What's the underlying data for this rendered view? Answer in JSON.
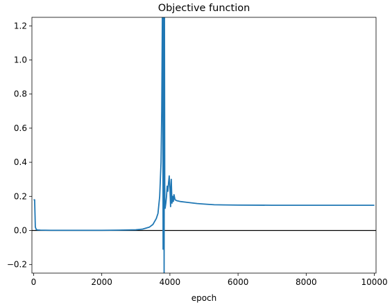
{
  "chart_data": {
    "type": "line",
    "title": "Objective function",
    "xlabel": "epoch",
    "ylabel": "",
    "xlim": [
      -50,
      10050
    ],
    "ylim": [
      -0.25,
      1.25
    ],
    "xticks": [
      0,
      2000,
      4000,
      6000,
      8000,
      10000
    ],
    "xtick_labels": [
      "0",
      "2000",
      "4000",
      "6000",
      "8000",
      "10000"
    ],
    "yticks": [
      -0.2,
      0.0,
      0.2,
      0.4,
      0.6,
      0.8,
      1.0,
      1.2
    ],
    "ytick_labels": [
      "−0.2",
      "0.0",
      "0.2",
      "0.4",
      "0.6",
      "0.8",
      "1.0",
      "1.2"
    ],
    "grid": false,
    "legend": "none",
    "colors": {
      "series": "#1f77b4",
      "reference": "#000000"
    },
    "reference_line": {
      "y": 0.0
    },
    "series": [
      {
        "x": [
          0,
          30,
          50,
          80,
          120,
          200,
          500,
          1000,
          1500,
          2000,
          2500,
          3000,
          3200,
          3400,
          3500,
          3600,
          3650,
          3700,
          3740,
          3760,
          3770,
          3780,
          3790,
          3800,
          3810,
          3820,
          3830,
          3840,
          3850,
          3860,
          3880,
          3900,
          3920,
          3940,
          3960,
          3980,
          4000,
          4020,
          4040,
          4060,
          4080,
          4100,
          4120,
          4150,
          4200,
          4300,
          4500,
          4800,
          5000,
          5300,
          5600,
          6000,
          7000,
          8000,
          9000,
          10000
        ],
        "y": [
          0.18,
          0.18,
          0.02,
          0.005,
          0.003,
          0.002,
          0.001,
          0.001,
          0.001,
          0.001,
          0.002,
          0.004,
          0.008,
          0.02,
          0.035,
          0.07,
          0.1,
          0.2,
          0.4,
          0.7,
          1.0,
          1.3,
          1.3,
          -0.11,
          1.3,
          1.3,
          -0.25,
          1.3,
          0.17,
          0.13,
          0.16,
          0.2,
          0.26,
          0.23,
          0.28,
          0.32,
          0.25,
          0.14,
          0.3,
          0.16,
          0.2,
          0.17,
          0.21,
          0.18,
          0.175,
          0.17,
          0.165,
          0.158,
          0.155,
          0.151,
          0.15,
          0.149,
          0.148,
          0.148,
          0.148,
          0.148
        ]
      }
    ]
  }
}
